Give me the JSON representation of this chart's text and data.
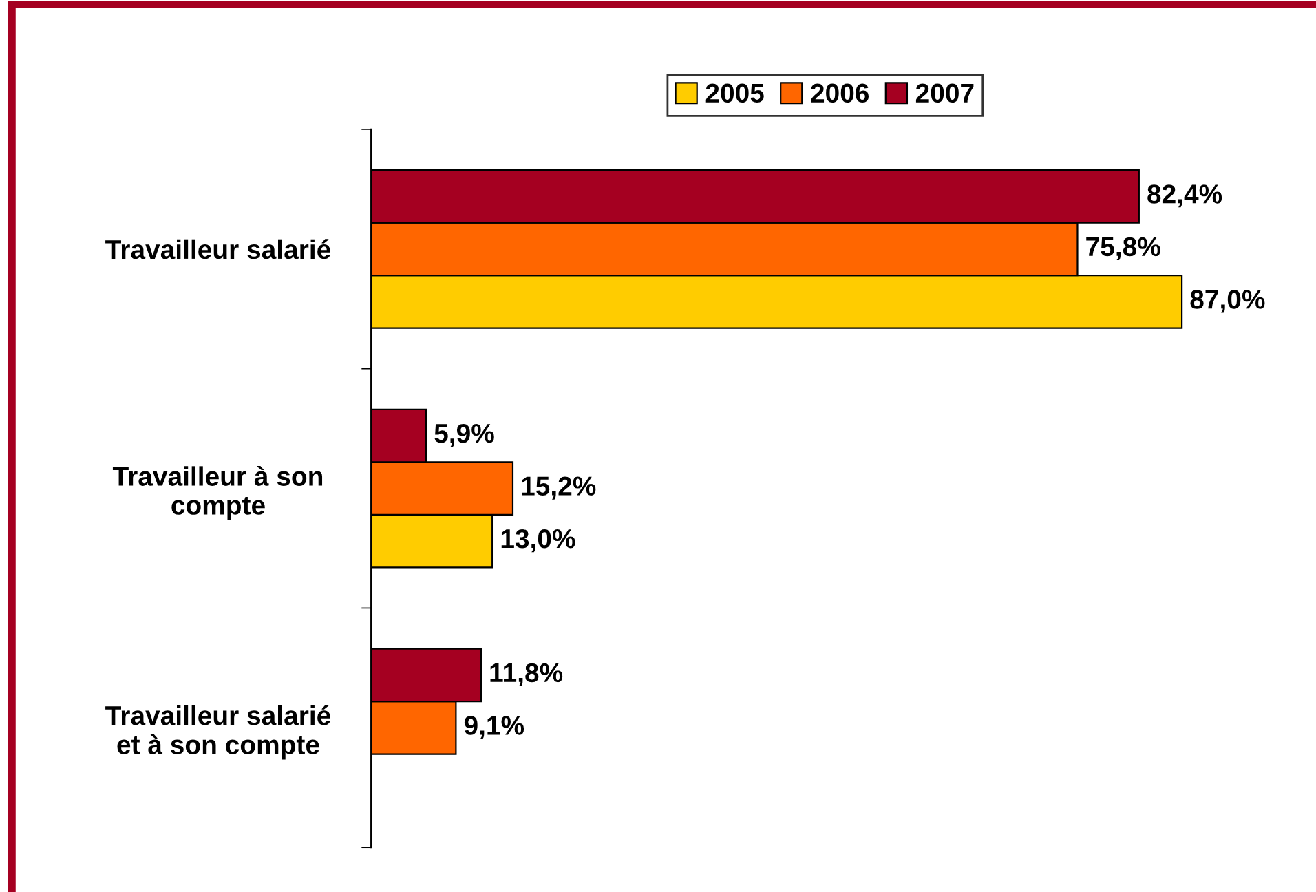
{
  "chart_data": {
    "type": "bar",
    "orientation": "horizontal",
    "categories": [
      "Travailleur salarié",
      "Travailleur à son\ncompte",
      "Travailleur salarié\net à son compte"
    ],
    "series": [
      {
        "name": "2005",
        "color": "#ffcc00",
        "values": [
          87.0,
          13.0,
          null
        ],
        "value_labels": [
          "87,0%",
          "13,0%",
          null
        ]
      },
      {
        "name": "2006",
        "color": "#ff6600",
        "values": [
          75.8,
          15.2,
          9.1
        ],
        "value_labels": [
          "75,8%",
          "15,2%",
          "9,1%"
        ]
      },
      {
        "name": "2007",
        "color": "#a50021",
        "values": [
          82.4,
          5.9,
          11.8
        ],
        "value_labels": [
          "82,4%",
          "5,9%",
          "11,8%"
        ]
      }
    ],
    "grid": false,
    "legend": "top"
  }
}
